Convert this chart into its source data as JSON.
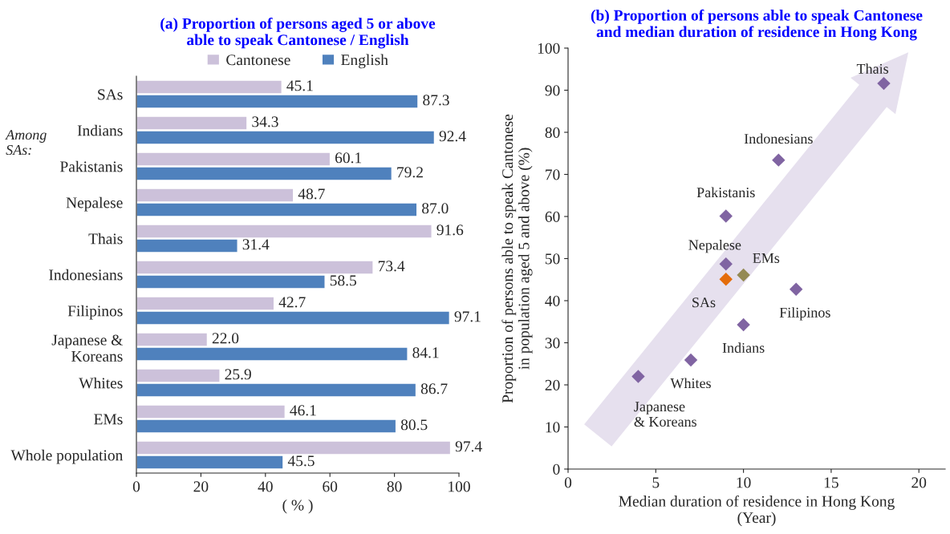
{
  "chart_data": [
    {
      "type": "bar",
      "orientation": "horizontal",
      "title": "(a) Proportion of persons aged 5 or above\nable to speak Cantonese / English",
      "xlabel": "( % )",
      "categories": [
        "SAs",
        "Indians",
        "Pakistanis",
        "Nepalese",
        "Thais",
        "Indonesians",
        "Filipinos",
        "Japanese &\nKoreans",
        "Whites",
        "EMs",
        "Whole population"
      ],
      "series": [
        {
          "name": "Cantonese",
          "color": "#ccc1da",
          "values": [
            45.1,
            34.3,
            60.1,
            48.7,
            91.6,
            73.4,
            42.7,
            22.0,
            25.9,
            46.1,
            97.4
          ],
          "value_labels": [
            "45.1",
            "34.3",
            "60.1",
            "48.7",
            "91.6",
            "73.4",
            "42.7",
            "22.0",
            "25.9",
            "46.1",
            "97.4"
          ]
        },
        {
          "name": "English",
          "color": "#4f81bd",
          "values": [
            87.3,
            92.4,
            79.2,
            87.0,
            31.4,
            58.5,
            97.1,
            84.1,
            86.7,
            80.5,
            45.5
          ],
          "value_labels": [
            "87.3",
            "92.4",
            "79.2",
            "87.0",
            "31.4",
            "58.5",
            "97.1",
            "84.1",
            "86.7",
            "80.5",
            "45.5"
          ]
        }
      ],
      "xlim": [
        0,
        100
      ],
      "xticks": [
        0,
        20,
        40,
        60,
        80,
        100
      ],
      "legend": "top",
      "grid": false,
      "annotations": [
        "Among\nSAs:"
      ]
    },
    {
      "type": "scatter",
      "title": "(b) Proportion of persons able to speak Cantonese\nand median duration of residence in Hong Kong",
      "xlabel": "Median duration of residence in Hong Kong\n(Year)",
      "ylabel": "Proportion of persons able to speak Cantonese\nin population aged 5 and above (%)",
      "x": [
        18,
        12,
        9,
        9,
        9,
        10,
        13,
        10,
        7,
        4
      ],
      "values": [
        91.6,
        73.4,
        60.1,
        48.7,
        45.1,
        46.1,
        42.7,
        34.3,
        25.9,
        22.0
      ],
      "colors": [
        "#8064a2",
        "#8064a2",
        "#8064a2",
        "#8064a2",
        "#e46c0a",
        "#948a54",
        "#8064a2",
        "#8064a2",
        "#8064a2",
        "#8064a2"
      ],
      "marker": "diamond",
      "xlim": [
        0,
        21.5
      ],
      "xticks": [
        0,
        5,
        10,
        15,
        20
      ],
      "ylim": [
        0,
        100
      ],
      "yticks": [
        0,
        10,
        20,
        30,
        40,
        50,
        60,
        70,
        80,
        90,
        100
      ],
      "grid": false,
      "annotations": [
        {
          "text": "Thais",
          "x": 18,
          "y": 91.6
        },
        {
          "text": "Indonesians",
          "x": 12,
          "y": 73.4
        },
        {
          "text": "Pakistanis",
          "x": 9,
          "y": 60.1
        },
        {
          "text": "Nepalese",
          "x": 9,
          "y": 48.7
        },
        {
          "text": "SAs",
          "x": 9,
          "y": 45.1
        },
        {
          "text": "EMs",
          "x": 10,
          "y": 46.1
        },
        {
          "text": "Filipinos",
          "x": 13,
          "y": 42.7
        },
        {
          "text": "Indians",
          "x": 10,
          "y": 34.3
        },
        {
          "text": "Whites",
          "x": 7,
          "y": 25.9
        },
        {
          "text": "Japanese\n& Koreans",
          "x": 4,
          "y": 22.0
        }
      ]
    }
  ]
}
